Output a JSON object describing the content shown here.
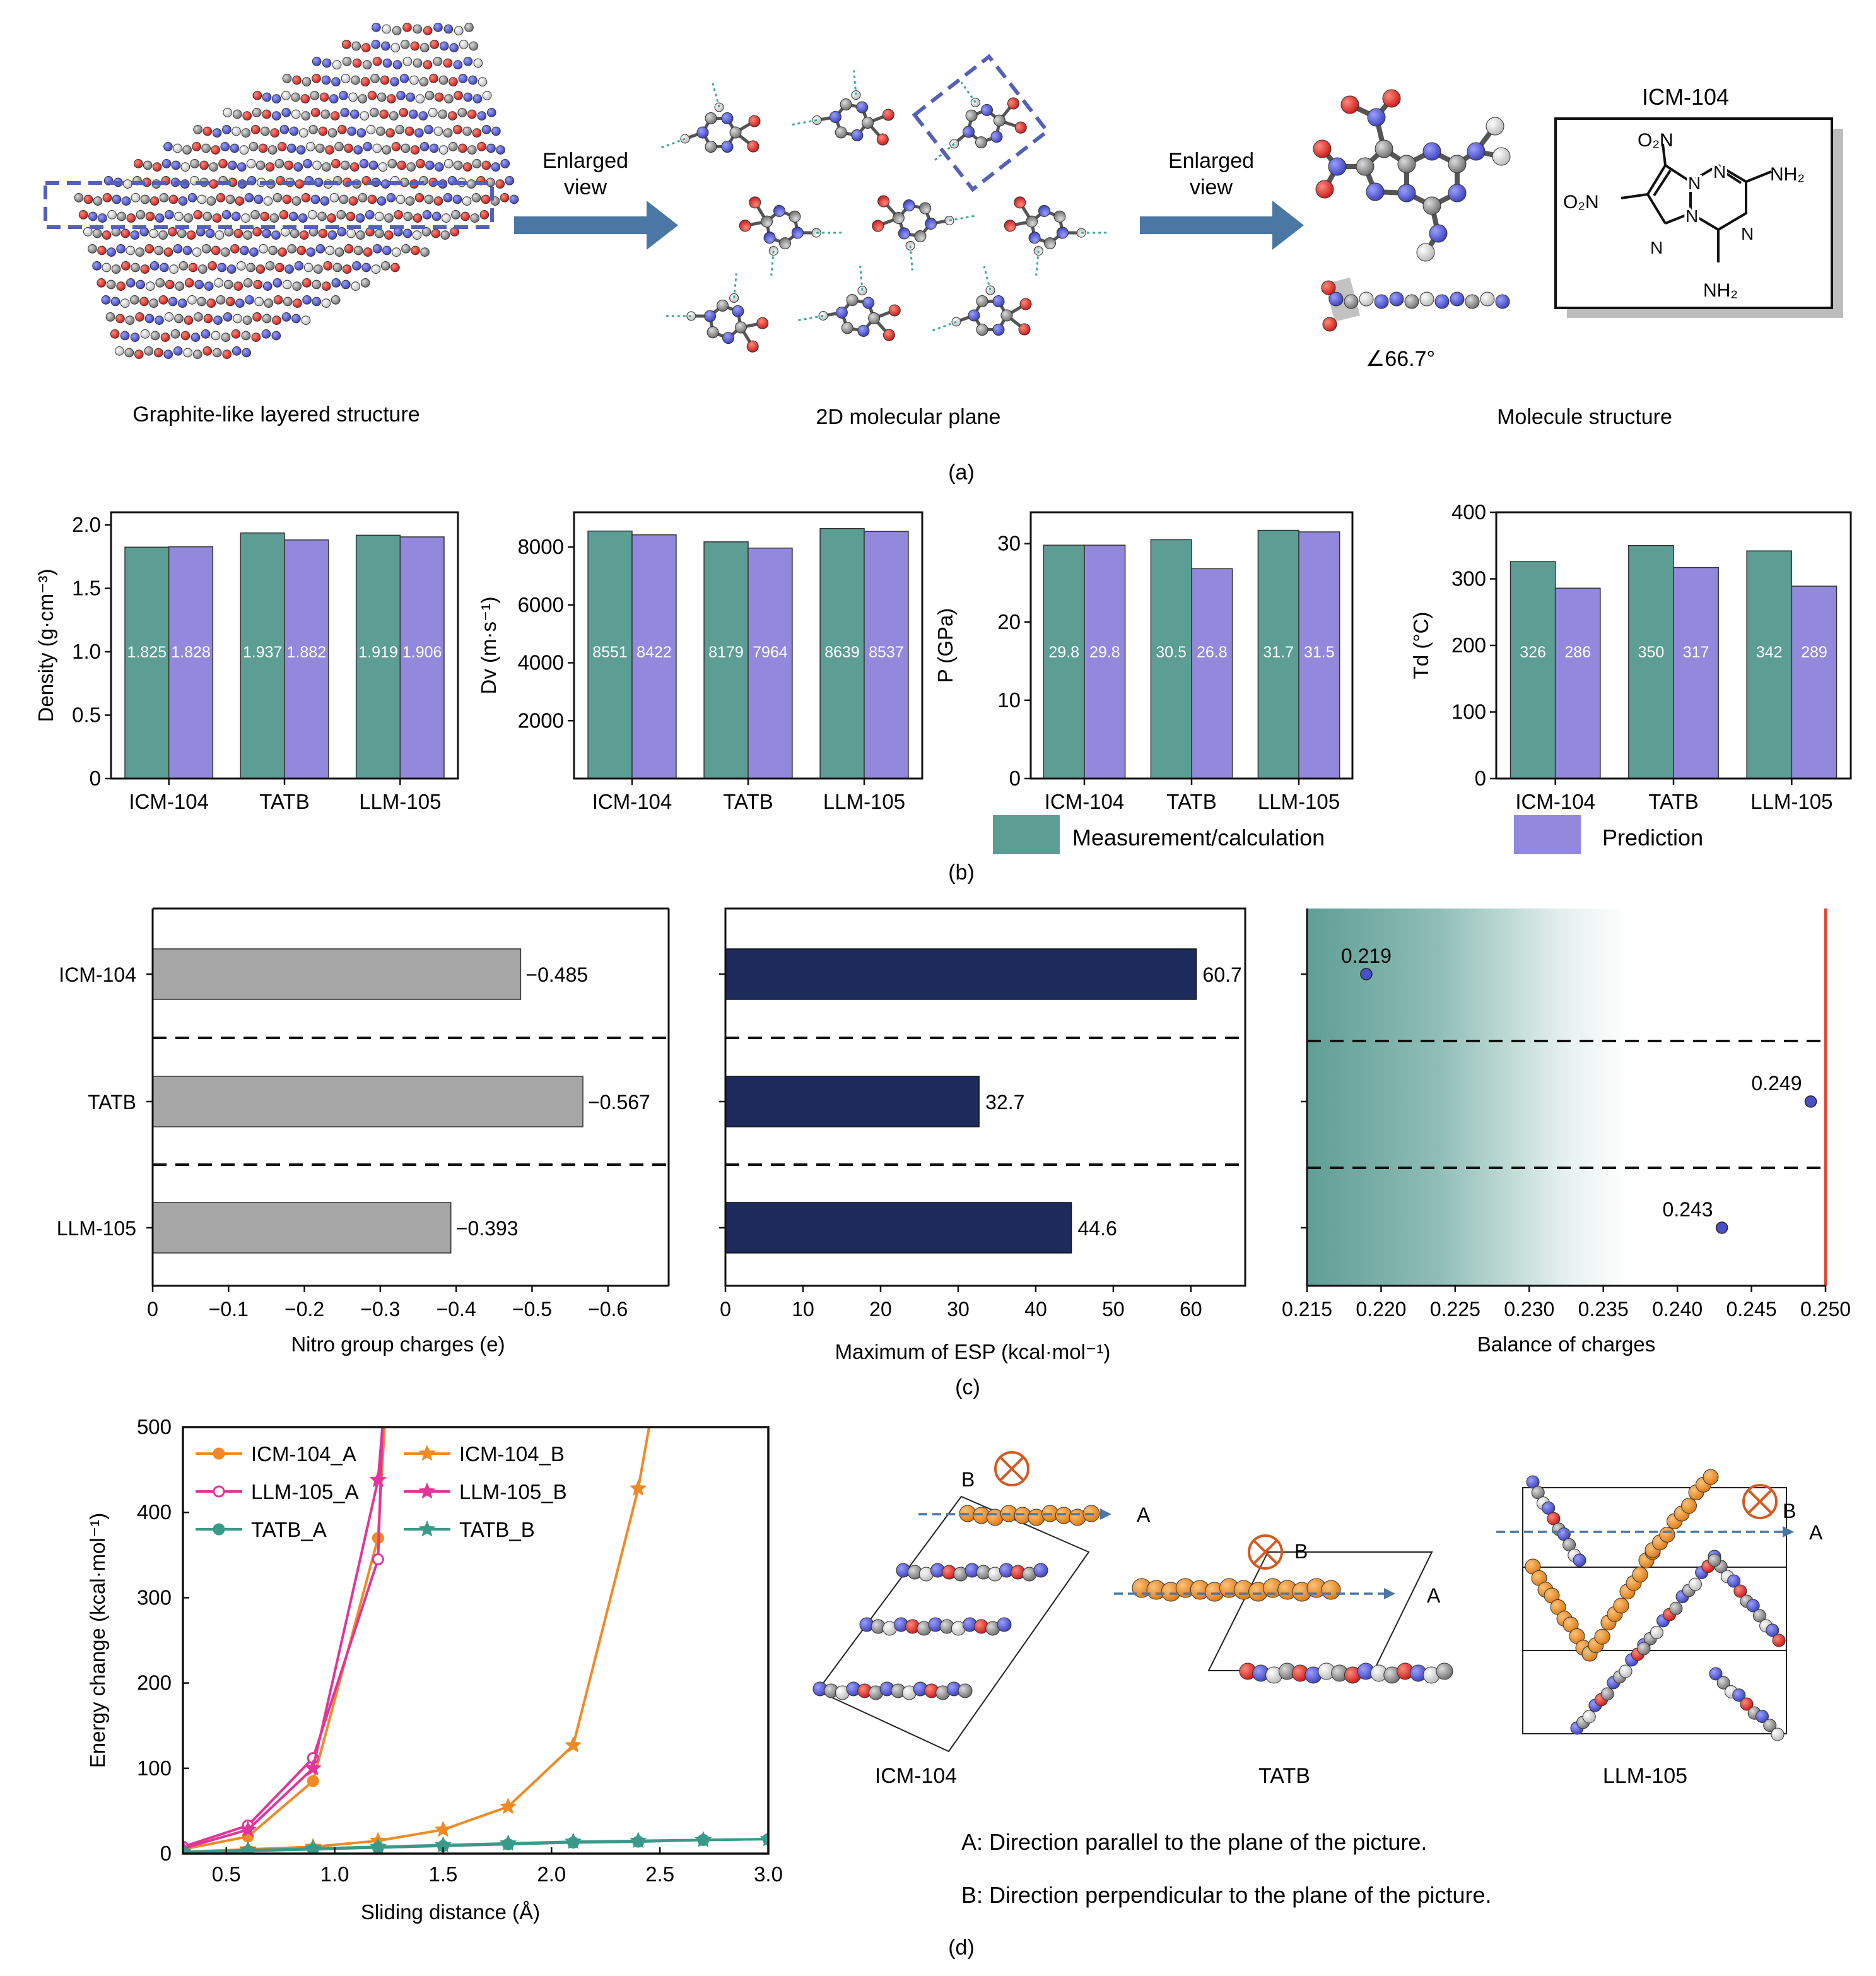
{
  "panel_a": {
    "label": "(a)",
    "caption_left": "Graphite-like layered structure",
    "caption_mid": "2D molecular plane",
    "caption_right": "Molecule structure",
    "arrow1_line1": "Enlarged",
    "arrow1_line2": "view",
    "arrow2_line1": "Enlarged",
    "arrow2_line2": "view",
    "angle": "∠66.7°",
    "formula_title": "ICM-104",
    "formula_labels": {
      "o2n_top": "O₂N",
      "o2n_left": "O₂N",
      "nh2_right": "NH₂",
      "nh2_bottom": "NH₂",
      "n": "N"
    }
  },
  "panel_b": {
    "label": "(b)",
    "legend_meas": "Measurement/calculation",
    "legend_pred": "Prediction"
  },
  "panel_c": {
    "label": "(c)"
  },
  "panel_d": {
    "label": "(d)",
    "struct_labels": [
      "ICM-104",
      "TATB",
      "LLM-105"
    ],
    "dir_a": "A",
    "dir_b": "B",
    "note_a": "A: Direction parallel to the plane of the picture.",
    "note_b": "B: Direction perpendicular to the plane of the picture."
  },
  "colors": {
    "meas": "#5c9d94",
    "pred": "#9289dc",
    "gray_bar": "#a6a6a6",
    "navy_bar": "#1d2a5c",
    "orange": "#f08a24",
    "magenta": "#e0369a",
    "teal": "#3a9a8a",
    "arrow_blue": "#4a77a3",
    "dash_blue": "#5560b8",
    "red_line": "#e0402a",
    "point_blue": "#4b4fc7"
  },
  "chart_data": [
    {
      "type": "bar",
      "categories": [
        "ICM-104",
        "TATB",
        "LLM-105"
      ],
      "series": [
        {
          "name": "Measurement/calculation",
          "values": [
            1.825,
            1.937,
            1.919
          ],
          "labels": [
            "1.825",
            "1.937",
            "1.919"
          ]
        },
        {
          "name": "Prediction",
          "values": [
            1.828,
            1.882,
            1.906
          ],
          "labels": [
            "1.828",
            "1.882",
            "1.906"
          ]
        }
      ],
      "ylabel": "Density (g·cm⁻³)",
      "ylim": [
        0,
        2.1
      ],
      "yticks": [
        0,
        0.5,
        1.0,
        1.5,
        2.0
      ],
      "ytick_labels": [
        "0",
        "0.5",
        "1.0",
        "1.5",
        "2.0"
      ]
    },
    {
      "type": "bar",
      "categories": [
        "ICM-104",
        "TATB",
        "LLM-105"
      ],
      "series": [
        {
          "name": "Measurement/calculation",
          "values": [
            8551,
            8179,
            8639
          ],
          "labels": [
            "8551",
            "8179",
            "8639"
          ]
        },
        {
          "name": "Prediction",
          "values": [
            8422,
            7964,
            8537
          ],
          "labels": [
            "8422",
            "7964",
            "8537"
          ]
        }
      ],
      "ylabel": "Dv (m·s⁻¹)",
      "ylim": [
        0,
        9200
      ],
      "yticks": [
        2000,
        4000,
        6000,
        8000
      ],
      "ytick_labels": [
        "2000",
        "4000",
        "6000",
        "8000"
      ]
    },
    {
      "type": "bar",
      "categories": [
        "ICM-104",
        "TATB",
        "LLM-105"
      ],
      "series": [
        {
          "name": "Measurement/calculation",
          "values": [
            29.8,
            30.5,
            31.7
          ],
          "labels": [
            "29.8",
            "30.5",
            "31.7"
          ]
        },
        {
          "name": "Prediction",
          "values": [
            29.8,
            26.8,
            31.5
          ],
          "labels": [
            "29.8",
            "26.8",
            "31.5"
          ]
        }
      ],
      "ylabel": "P (GPa)",
      "ylim": [
        0,
        34
      ],
      "yticks": [
        0,
        10,
        20,
        30
      ],
      "ytick_labels": [
        "0",
        "10",
        "20",
        "30"
      ]
    },
    {
      "type": "bar",
      "categories": [
        "ICM-104",
        "TATB",
        "LLM-105"
      ],
      "series": [
        {
          "name": "Measurement/calculation",
          "values": [
            326,
            350,
            342
          ],
          "labels": [
            "326",
            "350",
            "342"
          ]
        },
        {
          "name": "Prediction",
          "values": [
            286,
            317,
            289
          ],
          "labels": [
            "286",
            "317",
            "289"
          ]
        }
      ],
      "ylabel": "Td (°C)",
      "ylim": [
        0,
        400
      ],
      "yticks": [
        0,
        100,
        200,
        300,
        400
      ],
      "ytick_labels": [
        "0",
        "100",
        "200",
        "300",
        "400"
      ]
    },
    {
      "type": "bar",
      "orientation": "horizontal",
      "categories": [
        "ICM-104",
        "TATB",
        "LLM-105"
      ],
      "values": [
        -0.485,
        -0.567,
        -0.393
      ],
      "value_labels": [
        "−0.485",
        "−0.567",
        "−0.393"
      ],
      "xlabel": "Nitro group charges (e)",
      "xlim": [
        0,
        -0.68
      ],
      "xticks": [
        0,
        -0.1,
        -0.2,
        -0.3,
        -0.4,
        -0.5,
        -0.6
      ],
      "xtick_labels": [
        "0",
        "−0.1",
        "−0.2",
        "−0.3",
        "−0.4",
        "−0.5",
        "−0.6"
      ]
    },
    {
      "type": "bar",
      "orientation": "horizontal",
      "categories": [
        "ICM-104",
        "TATB",
        "LLM-105"
      ],
      "values": [
        60.7,
        32.7,
        44.6
      ],
      "value_labels": [
        "60.7",
        "32.7",
        "44.6"
      ],
      "xlabel": "Maximum of ESP (kcal·mol⁻¹)",
      "xlim": [
        0,
        67
      ],
      "xticks": [
        0,
        10,
        20,
        30,
        40,
        50,
        60
      ],
      "xtick_labels": [
        "0",
        "10",
        "20",
        "30",
        "40",
        "50",
        "60"
      ]
    },
    {
      "type": "scatter",
      "categories": [
        "ICM-104",
        "TATB",
        "LLM-105"
      ],
      "values": [
        0.219,
        0.249,
        0.243
      ],
      "value_labels": [
        "0.219",
        "0.249",
        "0.243"
      ],
      "xlabel": "Balance of charges",
      "xlim": [
        0.215,
        0.25
      ],
      "xticks": [
        0.215,
        0.22,
        0.225,
        0.23,
        0.235,
        0.24,
        0.245,
        0.25
      ],
      "xtick_labels": [
        "0.215",
        "0.220",
        "0.225",
        "0.230",
        "0.235",
        "0.240",
        "0.245",
        "0.250"
      ]
    },
    {
      "type": "line",
      "xlabel": "Sliding distance (Å)",
      "ylabel": "Energy change (kcal·mol⁻¹)",
      "xlim": [
        0.3,
        3.0
      ],
      "ylim": [
        0,
        500
      ],
      "xticks": [
        0.5,
        1.0,
        1.5,
        2.0,
        2.5,
        3.0
      ],
      "xtick_labels": [
        "0.5",
        "1.0",
        "1.5",
        "2.0",
        "2.5",
        "3.0"
      ],
      "yticks": [
        0,
        100,
        200,
        300,
        400,
        500
      ],
      "ytick_labels": [
        "0",
        "100",
        "200",
        "300",
        "400",
        "500"
      ],
      "series": [
        {
          "name": "ICM-104_A",
          "color": "orange",
          "marker": "circle",
          "x": [
            0.3,
            0.6,
            0.9,
            1.2,
            1.23
          ],
          "y": [
            5,
            20,
            85,
            370,
            500
          ]
        },
        {
          "name": "ICM-104_B",
          "color": "orange",
          "marker": "star",
          "x": [
            0.3,
            0.6,
            0.9,
            1.2,
            1.5,
            1.8,
            2.1,
            2.4,
            2.45
          ],
          "y": [
            2,
            5,
            8,
            15,
            28,
            55,
            127,
            428,
            500
          ]
        },
        {
          "name": "LLM-105_A",
          "color": "magenta",
          "marker": "circle",
          "x": [
            0.3,
            0.6,
            0.9,
            1.2,
            1.22
          ],
          "y": [
            8,
            33,
            112,
            345,
            500
          ]
        },
        {
          "name": "LLM-105_B",
          "color": "magenta",
          "marker": "star",
          "x": [
            0.3,
            0.6,
            0.9,
            1.2,
            1.22
          ],
          "y": [
            6,
            28,
            100,
            438,
            500
          ]
        },
        {
          "name": "TATB_A",
          "color": "teal",
          "marker": "circle",
          "x": [
            0.3,
            0.6,
            0.9,
            1.2,
            1.5,
            1.8,
            2.1,
            2.4,
            2.7,
            3.0
          ],
          "y": [
            1,
            3,
            5,
            7,
            9,
            11,
            13,
            14,
            16,
            17
          ]
        },
        {
          "name": "TATB_B",
          "color": "teal",
          "marker": "star",
          "x": [
            0.3,
            0.6,
            0.9,
            1.2,
            1.5,
            1.8,
            2.1,
            2.4,
            2.7,
            3.0
          ],
          "y": [
            2,
            4,
            6,
            8,
            10,
            12,
            14,
            15,
            16,
            17
          ]
        }
      ]
    }
  ]
}
